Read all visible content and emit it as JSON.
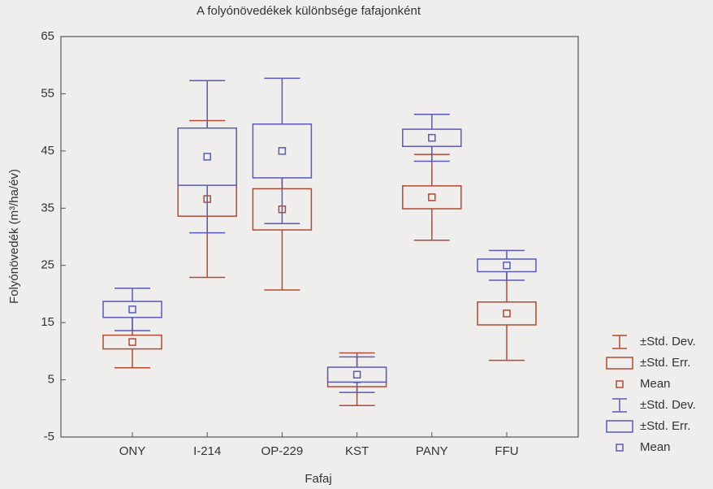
{
  "chart_data": {
    "type": "meanbox",
    "title": "A folyónövedékek különbsége fafajonként",
    "x_label": "Fafaj",
    "y_label": "Folyónövedék (m³/ha/év)",
    "categories": [
      "ONY",
      "I-214",
      "OP-229",
      "KST",
      "PANY",
      "FFU"
    ],
    "ylim": [
      -5,
      65
    ],
    "yticks": [
      -5,
      5,
      15,
      25,
      35,
      45,
      55,
      65
    ],
    "legend_labels": [
      "±Std. Dev.",
      "±Std. Err.",
      "Mean"
    ],
    "series": [
      {
        "color": "#b04a34",
        "mean": [
          11.6,
          36.6,
          34.8,
          5.1,
          36.9,
          16.6
        ],
        "se": [
          1.2,
          3.0,
          3.6,
          1.3,
          2.0,
          2.0
        ],
        "sd": [
          4.5,
          13.7,
          14.1,
          4.6,
          7.5,
          8.2
        ]
      },
      {
        "color": "#5a5ab8",
        "mean": [
          17.3,
          44.0,
          45.0,
          5.9,
          47.3,
          25.0
        ],
        "se": [
          1.4,
          5.0,
          4.7,
          1.3,
          1.5,
          1.1
        ],
        "sd": [
          3.7,
          13.3,
          12.7,
          3.1,
          4.1,
          2.6
        ]
      }
    ]
  }
}
